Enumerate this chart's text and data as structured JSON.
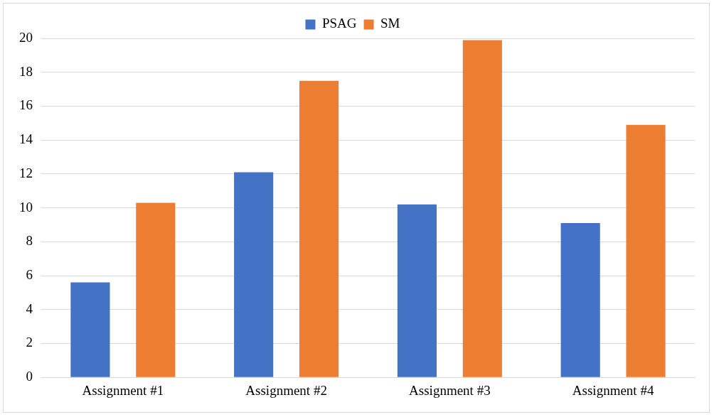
{
  "chart_data": {
    "type": "bar",
    "categories": [
      "Assignment #1",
      "Assignment #2",
      "Assignment #3",
      "Assignment #4"
    ],
    "series": [
      {
        "name": "PSAG",
        "color": "#4472c4",
        "values": [
          5.6,
          12.1,
          10.2,
          9.1
        ]
      },
      {
        "name": "SM",
        "color": "#ed7d31",
        "values": [
          10.3,
          17.5,
          19.9,
          14.9
        ]
      }
    ],
    "ylim": [
      0,
      20
    ],
    "yticks": [
      0,
      2,
      4,
      6,
      8,
      10,
      12,
      14,
      16,
      18,
      20
    ],
    "grid": "y",
    "legend": "top"
  }
}
